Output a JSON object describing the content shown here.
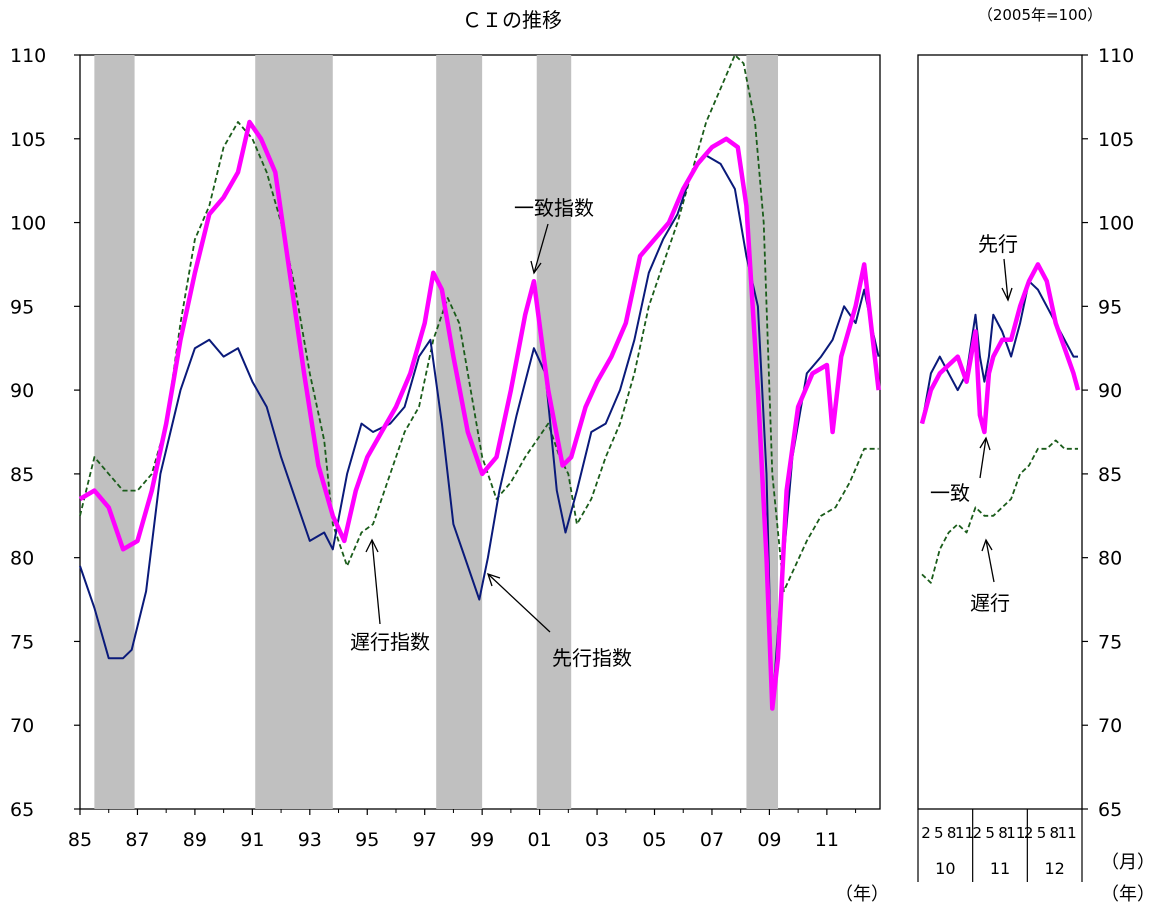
{
  "chart_data": [
    {
      "type": "line",
      "title": "ＣＩの推移",
      "xlabel": "（年）",
      "ylim": [
        65,
        110
      ],
      "yticks": [
        "110",
        "105",
        "100",
        "95",
        "90",
        "85",
        "80",
        "75",
        "70",
        "65"
      ],
      "xticks": [
        "85",
        "87",
        "89",
        "91",
        "93",
        "95",
        "97",
        "99",
        "01",
        "03",
        "05",
        "07",
        "09",
        "11"
      ],
      "recessions": [
        [
          1985.5,
          1986.9
        ],
        [
          1991.1,
          1993.8
        ],
        [
          1997.4,
          1999.0
        ],
        [
          2000.9,
          2002.1
        ],
        [
          2008.2,
          2009.3
        ]
      ],
      "series": [
        {
          "name": "一致指数",
          "color": "#ff00ff",
          "style": "solid-thick",
          "x": [
            1985.0,
            1985.5,
            1986.0,
            1986.5,
            1987.0,
            1987.5,
            1988.0,
            1988.5,
            1989.0,
            1989.5,
            1990.0,
            1990.5,
            1990.9,
            1991.3,
            1991.8,
            1992.3,
            1992.8,
            1993.3,
            1993.8,
            1994.2,
            1994.6,
            1995.0,
            1995.5,
            1996.0,
            1996.5,
            1997.0,
            1997.3,
            1997.6,
            1998.0,
            1998.5,
            1999.0,
            1999.5,
            2000.0,
            2000.5,
            2000.8,
            2001.3,
            2001.8,
            2002.1,
            2002.6,
            2003.0,
            2003.5,
            2004.0,
            2004.5,
            2005.0,
            2005.5,
            2006.0,
            2006.5,
            2007.0,
            2007.5,
            2007.9,
            2008.2,
            2008.6,
            2008.9,
            2009.1,
            2009.3,
            2009.6,
            2010.0,
            2010.5,
            2011.0,
            2011.2,
            2011.5,
            2012.0,
            2012.3,
            2012.6,
            2012.8
          ],
          "y": [
            83.5,
            84.0,
            83.0,
            80.5,
            81.0,
            84.0,
            88.0,
            93.0,
            97.0,
            100.5,
            101.5,
            103.0,
            106.0,
            105.0,
            103.0,
            97.0,
            91.0,
            85.5,
            82.5,
            81.0,
            84.0,
            86.0,
            87.5,
            89.0,
            91.0,
            94.0,
            97.0,
            96.0,
            92.0,
            87.5,
            85.0,
            86.0,
            90.0,
            94.5,
            96.5,
            90.0,
            85.5,
            86.0,
            89.0,
            90.5,
            92.0,
            94.0,
            98.0,
            99.0,
            100.0,
            102.0,
            103.5,
            104.5,
            105.0,
            104.5,
            101.0,
            90.0,
            80.0,
            71.0,
            74.0,
            84.0,
            89.0,
            91.0,
            91.5,
            87.5,
            92.0,
            95.0,
            97.5,
            93.0,
            90.0
          ]
        },
        {
          "name": "先行指数",
          "color": "#0a1a7a",
          "style": "solid",
          "x": [
            1985.0,
            1985.5,
            1986.0,
            1986.5,
            1986.8,
            1987.3,
            1987.8,
            1988.5,
            1989.0,
            1989.5,
            1990.0,
            1990.5,
            1991.0,
            1991.5,
            1992.0,
            1992.5,
            1993.0,
            1993.5,
            1993.8,
            1994.3,
            1994.8,
            1995.2,
            1995.8,
            1996.3,
            1996.8,
            1997.2,
            1997.6,
            1998.0,
            1998.5,
            1998.9,
            1999.2,
            1999.6,
            2000.2,
            2000.8,
            2001.2,
            2001.6,
            2001.9,
            2002.3,
            2002.8,
            2003.3,
            2003.8,
            2004.3,
            2004.8,
            2005.3,
            2005.8,
            2006.3,
            2006.8,
            2007.3,
            2007.8,
            2008.2,
            2008.6,
            2008.9,
            2009.1,
            2009.4,
            2009.8,
            2010.3,
            2010.8,
            2011.2,
            2011.6,
            2012.0,
            2012.3,
            2012.6,
            2012.8
          ],
          "y": [
            79.5,
            77.0,
            74.0,
            74.0,
            74.5,
            78.0,
            85.0,
            90.0,
            92.5,
            93.0,
            92.0,
            92.5,
            90.5,
            89.0,
            86.0,
            83.5,
            81.0,
            81.5,
            80.5,
            85.0,
            88.0,
            87.5,
            88.0,
            89.0,
            92.0,
            93.0,
            88.0,
            82.0,
            79.5,
            77.5,
            80.0,
            84.0,
            88.5,
            92.5,
            91.0,
            84.0,
            81.5,
            84.0,
            87.5,
            88.0,
            90.0,
            93.0,
            97.0,
            99.0,
            100.5,
            103.0,
            104.0,
            103.5,
            102.0,
            98.0,
            95.0,
            85.0,
            71.0,
            78.0,
            86.0,
            91.0,
            92.0,
            93.0,
            95.0,
            94.0,
            96.0,
            93.5,
            92.0
          ]
        },
        {
          "name": "遅行指数",
          "color": "#1a5c1a",
          "style": "dashed",
          "x": [
            1985.0,
            1985.5,
            1986.0,
            1986.5,
            1987.0,
            1987.5,
            1988.0,
            1988.5,
            1989.0,
            1989.5,
            1990.0,
            1990.5,
            1991.0,
            1991.5,
            1992.0,
            1992.5,
            1993.0,
            1993.5,
            1993.8,
            1994.3,
            1994.8,
            1995.2,
            1995.8,
            1996.3,
            1996.8,
            1997.3,
            1997.8,
            1998.2,
            1998.6,
            1999.0,
            1999.5,
            2000.0,
            2000.5,
            2000.9,
            2001.3,
            2001.7,
            2002.0,
            2002.3,
            2002.8,
            2003.3,
            2003.8,
            2004.3,
            2004.8,
            2005.3,
            2005.8,
            2006.3,
            2006.8,
            2007.3,
            2007.8,
            2008.1,
            2008.5,
            2008.8,
            2009.1,
            2009.5,
            2009.9,
            2010.3,
            2010.8,
            2011.3,
            2011.8,
            2012.3,
            2012.8
          ],
          "y": [
            82.5,
            86.0,
            85.0,
            84.0,
            84.0,
            85.0,
            88.0,
            94.0,
            99.0,
            101.0,
            104.5,
            106.0,
            105.0,
            103.0,
            100.0,
            96.0,
            91.0,
            87.0,
            82.0,
            79.5,
            81.5,
            82.0,
            85.0,
            87.5,
            89.0,
            93.0,
            95.5,
            94.0,
            90.0,
            86.0,
            83.5,
            84.5,
            86.0,
            87.0,
            88.0,
            86.0,
            85.0,
            82.0,
            83.5,
            86.0,
            88.0,
            91.0,
            95.0,
            97.5,
            100.0,
            103.0,
            106.0,
            108.0,
            110.0,
            109.5,
            106.0,
            100.0,
            85.0,
            78.0,
            79.5,
            81.0,
            82.5,
            83.0,
            84.5,
            86.5,
            86.5
          ]
        }
      ]
    },
    {
      "type": "line",
      "title": "（2005年=100）",
      "xlabel": "（年）",
      "xlabel_month": "（月）",
      "ylim": [
        65,
        110
      ],
      "yticks": [
        "110",
        "105",
        "100",
        "95",
        "90",
        "85",
        "80",
        "75",
        "70",
        "65"
      ],
      "month_labels": [
        "2",
        "5",
        "8",
        "11",
        "2",
        "5",
        "8",
        "11",
        "2",
        "5",
        "8",
        "11"
      ],
      "year_labels": [
        "10",
        "11",
        "12"
      ],
      "annotations": [
        "先行",
        "一致",
        "遅行"
      ],
      "series": [
        {
          "name": "一致",
          "color": "#ff00ff",
          "style": "solid-thick",
          "x": [
            0,
            2,
            4,
            6,
            8,
            10,
            12,
            13,
            14,
            15,
            16,
            18,
            20,
            22,
            24,
            26,
            28,
            30,
            32,
            34,
            35
          ],
          "y": [
            88.0,
            90.0,
            91.0,
            91.5,
            92.0,
            90.5,
            93.5,
            88.5,
            87.5,
            91.0,
            92.0,
            93.0,
            93.0,
            95.0,
            96.5,
            97.5,
            96.5,
            94.0,
            92.5,
            91.0,
            90.0
          ]
        },
        {
          "name": "先行",
          "color": "#0a1a7a",
          "style": "solid",
          "x": [
            0,
            2,
            4,
            6,
            8,
            10,
            12,
            13,
            14,
            15,
            16,
            18,
            20,
            22,
            24,
            26,
            28,
            30,
            32,
            34,
            35
          ],
          "y": [
            88.0,
            91.0,
            92.0,
            91.0,
            90.0,
            91.0,
            94.5,
            92.0,
            90.5,
            92.0,
            94.5,
            93.5,
            92.0,
            94.0,
            96.5,
            96.0,
            95.0,
            94.0,
            93.0,
            92.0,
            92.0
          ]
        },
        {
          "name": "遅行",
          "color": "#1a5c1a",
          "style": "dashed",
          "x": [
            0,
            2,
            4,
            6,
            8,
            10,
            12,
            14,
            16,
            18,
            20,
            22,
            24,
            26,
            28,
            30,
            32,
            34,
            35
          ],
          "y": [
            79.0,
            78.5,
            80.5,
            81.5,
            82.0,
            81.5,
            83.0,
            82.5,
            82.5,
            83.0,
            83.5,
            85.0,
            85.5,
            86.5,
            86.5,
            87.0,
            86.5,
            86.5,
            86.5
          ]
        }
      ]
    }
  ],
  "labels": {
    "lag_index": "遅行指数",
    "lead_index": "先行指数",
    "coin_index": "一致指数",
    "inset_lead": "先行",
    "inset_coin": "一致",
    "inset_lag": "遅行"
  }
}
